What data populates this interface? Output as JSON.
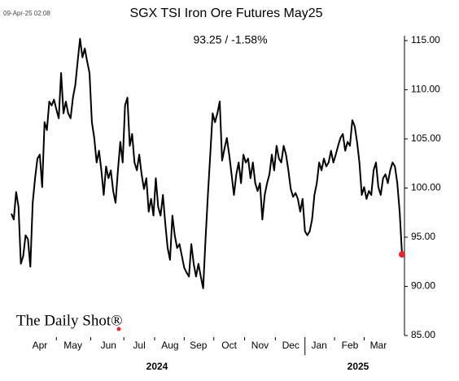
{
  "chart_data": {
    "type": "line",
    "title": "SGX TSI Iron Ore Futures May25",
    "subtitle": "93.25  /  -1.58%",
    "timestamp": "09-Apr-25 02:08",
    "watermark": "The Daily Shot®",
    "categories": [
      null,
      null,
      null,
      null,
      null,
      null,
      null,
      null,
      null,
      null,
      null,
      null,
      "Apr",
      null,
      null,
      null,
      null,
      null,
      null,
      null,
      null,
      null,
      null,
      null,
      null,
      null,
      "May",
      null,
      null,
      null,
      null,
      null,
      null,
      null,
      null,
      null,
      null,
      null,
      null,
      null,
      null,
      "Jun",
      null,
      null,
      null,
      null,
      null,
      null,
      null,
      null,
      null,
      null,
      null,
      null,
      "Jul",
      null,
      null,
      null,
      null,
      null,
      null,
      null,
      null,
      null,
      null,
      null,
      null,
      "Aug",
      null,
      null,
      null,
      null,
      null,
      null,
      null,
      null,
      null,
      null,
      null,
      "Sep",
      null,
      null,
      null,
      null,
      null,
      null,
      null,
      null,
      null,
      null,
      null,
      null,
      "Oct",
      null,
      null,
      null,
      null,
      null,
      null,
      null,
      null,
      null,
      null,
      null,
      null,
      "Nov",
      null,
      null,
      null,
      null,
      null,
      null,
      null,
      null,
      null,
      null,
      null,
      null,
      "Dec",
      null,
      null,
      null,
      null,
      null,
      null,
      null,
      null,
      null,
      null,
      null,
      "Jan",
      null,
      null,
      null,
      null,
      null,
      null,
      null,
      null,
      null,
      null,
      null,
      null,
      "Feb",
      null,
      null,
      null,
      null,
      null,
      null,
      null,
      null,
      null,
      null,
      null,
      "Mar",
      null,
      null,
      null,
      null,
      null,
      null,
      null,
      null,
      null,
      null
    ],
    "year_labels": [
      "2024",
      "2025"
    ],
    "series": [
      {
        "name": "SGX TSI Iron Ore Futures May25",
        "color": "#000000",
        "end_marker_color": "#e8262a",
        "values": [
          97.4,
          96.8,
          99.6,
          98.1,
          92.3,
          93.1,
          95.2,
          94.8,
          92.0,
          98.5,
          101,
          103,
          103.4,
          100.1,
          106.7,
          105.9,
          108.8,
          108.4,
          109,
          108,
          107.1,
          111.7,
          107.6,
          108.8,
          107.6,
          107.1,
          109.2,
          110.5,
          112.9,
          115.2,
          113.3,
          114.2,
          112.9,
          111.7,
          106.7,
          105.1,
          102.6,
          103.8,
          101.8,
          99.3,
          102.2,
          101,
          101.8,
          99.7,
          98.5,
          101.8,
          104.7,
          102.6,
          108.4,
          109.2,
          104.3,
          105.5,
          102.6,
          101.8,
          103.4,
          101.4,
          99.9,
          101,
          97.6,
          98.9,
          97.2,
          101,
          98.1,
          97.2,
          99.3,
          96.4,
          93.9,
          92.7,
          97.2,
          95.2,
          93.9,
          94.3,
          93.1,
          91.9,
          91.4,
          91.0,
          94.3,
          92.3,
          91.0,
          92.3,
          91.0,
          89.8,
          94.8,
          99.3,
          103.4,
          107.6,
          106.7,
          107.6,
          108.8,
          102.8,
          104,
          105.1,
          103.4,
          101.4,
          99.3,
          101.4,
          102.6,
          100.5,
          103.4,
          102.6,
          103,
          101,
          102.6,
          100.5,
          99.7,
          100.5,
          96.8,
          99.3,
          100.5,
          101.4,
          103.4,
          101.8,
          104.3,
          103,
          102.6,
          104.3,
          103.4,
          101.8,
          99.9,
          99.1,
          99.5,
          98.9,
          97.6,
          98.9,
          95.6,
          95.2,
          95.6,
          96.8,
          99.3,
          100.5,
          102.6,
          101.8,
          103,
          102.2,
          102.6,
          103.8,
          102.6,
          103.4,
          104.3,
          105.1,
          105.5,
          103.8,
          104.7,
          104.3,
          106.9,
          106.3,
          104.7,
          102.6,
          99.3,
          100.1,
          98.9,
          99.7,
          99.3,
          101.8,
          102.6,
          100.1,
          99.3,
          101,
          101.4,
          100.5,
          101.8,
          102.6,
          102.2,
          100.5,
          97.6,
          93.25
        ]
      }
    ],
    "ylim": [
      85,
      115
    ],
    "yticks": [
      {
        "value": 85,
        "label": "85.00"
      },
      {
        "value": 90,
        "label": "90.00"
      },
      {
        "value": 95,
        "label": "95.00"
      },
      {
        "value": 100,
        "label": "100.00"
      },
      {
        "value": 105,
        "label": "105.00"
      },
      {
        "value": 110,
        "label": "110.00"
      },
      {
        "value": 115,
        "label": "115.00"
      }
    ],
    "grid": false,
    "y_axis_side": "right"
  }
}
